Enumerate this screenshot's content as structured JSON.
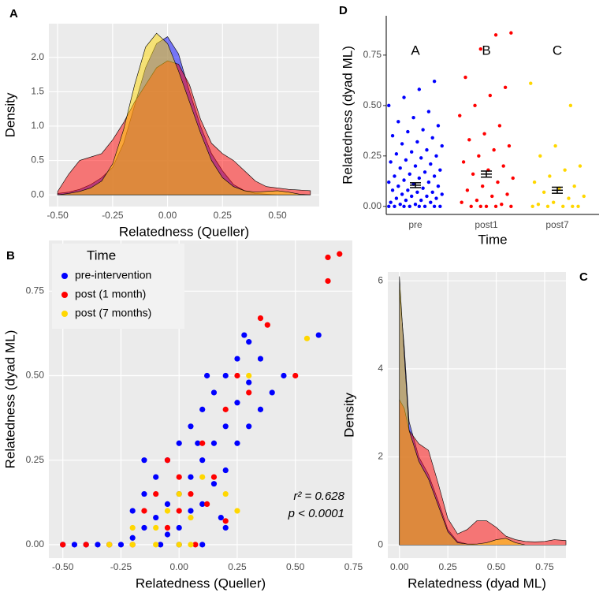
{
  "chart_data": [
    {
      "type": "density",
      "panel": "A",
      "xlabel": "Relatedness (Queller)",
      "ylabel": "Density",
      "xlim": [
        -0.54,
        0.69
      ],
      "ylim": [
        -0.17,
        2.49
      ],
      "grid": true,
      "xticks": [
        {
          "value": -0.5,
          "label": "-0.50"
        },
        -0.25,
        {
          "value": 0,
          "label": "0.00"
        },
        0.25,
        {
          "value": 0.5,
          "label": "0.50"
        }
      ],
      "yticks": [
        {
          "value": 0,
          "label": "0.0"
        },
        0.5,
        {
          "value": 1,
          "label": "1.0"
        },
        1.5,
        {
          "value": 2,
          "label": "2.0"
        }
      ],
      "x": [
        -0.5,
        -0.45,
        -0.4,
        -0.35,
        -0.3,
        -0.25,
        -0.2,
        -0.15,
        -0.1,
        -0.05,
        0,
        0.05,
        0.1,
        0.15,
        0.2,
        0.25,
        0.3,
        0.35,
        0.4,
        0.45,
        0.5,
        0.55,
        0.6,
        0.65
      ],
      "series": [
        {
          "color": "#0000ff",
          "values": [
            0.02,
            0.04,
            0.08,
            0.15,
            0.25,
            0.4,
            0.75,
            1.3,
            1.85,
            2.2,
            2.3,
            2.05,
            1.5,
            1.0,
            0.6,
            0.35,
            0.15,
            0.06,
            0.02,
            0.01,
            0,
            0,
            0,
            0
          ]
        },
        {
          "color": "#ff0000",
          "values": [
            0.05,
            0.3,
            0.5,
            0.55,
            0.6,
            0.8,
            1.05,
            1.35,
            1.6,
            1.85,
            1.95,
            1.9,
            1.6,
            1.1,
            0.75,
            0.6,
            0.5,
            0.35,
            0.2,
            0.12,
            0.1,
            0.08,
            0.07,
            0.06
          ]
        },
        {
          "color": "#ffd700",
          "values": [
            0,
            0.02,
            0.05,
            0.1,
            0.2,
            0.45,
            0.95,
            1.6,
            2.15,
            2.35,
            2.2,
            1.8,
            1.35,
            0.9,
            0.5,
            0.25,
            0.12,
            0.06,
            0.04,
            0.05,
            0.06,
            0.04,
            0.01,
            0
          ]
        }
      ]
    },
    {
      "type": "scatter",
      "panel": "B",
      "xlabel": "Relatedness (Queller)",
      "ylabel": "Relatedness (dyad ML)",
      "xlim": [
        -0.56,
        0.745
      ],
      "ylim": [
        -0.04,
        0.9
      ],
      "grid": true,
      "legend_title": "Time",
      "legend": "top-left",
      "annotations": [
        "r² = 0.628",
        "p < 0.0001"
      ],
      "xticks": [
        {
          "value": -0.5,
          "label": "-0.50"
        },
        -0.25,
        {
          "value": 0,
          "label": "0.00"
        },
        0.25,
        {
          "value": 0.5,
          "label": "0.50"
        },
        0.75
      ],
      "yticks": [
        {
          "value": 0,
          "label": "0.00"
        },
        0.25,
        {
          "value": 0.5,
          "label": "0.50"
        },
        0.75
      ],
      "series": [
        {
          "name": "pre-intervention",
          "color": "#0000ff",
          "x": [
            -0.5,
            -0.45,
            -0.4,
            -0.35,
            -0.3,
            -0.25,
            -0.2,
            -0.15,
            -0.2,
            -0.15,
            -0.1,
            -0.1,
            -0.05,
            -0.05,
            -0.05,
            0,
            0,
            0,
            0.05,
            0.05,
            0.05,
            0.1,
            0.1,
            0.1,
            0.15,
            0.15,
            0.15,
            0.2,
            0.2,
            0.2,
            0.25,
            0.25,
            0.25,
            0.3,
            0.3,
            0.35,
            0.35,
            0.4,
            0.45,
            0.6,
            0,
            0.1,
            0.2,
            -0.15,
            0.3,
            0.28,
            0.12,
            0.18,
            -0.08,
            0.08
          ],
          "values": [
            0,
            0,
            0,
            0,
            0,
            0,
            0.02,
            0.05,
            0.1,
            0.15,
            0.08,
            0.2,
            0.03,
            0.12,
            0.25,
            0.05,
            0.15,
            0.3,
            0.1,
            0.2,
            0.35,
            0.12,
            0.25,
            0.4,
            0.18,
            0.3,
            0.45,
            0.22,
            0.35,
            0.5,
            0.3,
            0.42,
            0.55,
            0.35,
            0.48,
            0.4,
            0.55,
            0.45,
            0.5,
            0.62,
            0,
            0,
            0.05,
            0.25,
            0.6,
            0.62,
            0.5,
            0.08,
            0,
            0.3
          ]
        },
        {
          "name": "post (1 month)",
          "color": "#ff0000",
          "x": [
            -0.5,
            -0.4,
            -0.3,
            -0.2,
            -0.15,
            -0.1,
            -0.05,
            0,
            0,
            0.05,
            0.1,
            0.15,
            0.2,
            0.25,
            0.3,
            0.35,
            0.38,
            0.5,
            0.64,
            0.64,
            0.69,
            0.2,
            -0.05,
            0.12,
            0.07
          ],
          "values": [
            0,
            0,
            0,
            0,
            0.1,
            0.15,
            0.05,
            0.1,
            0.2,
            0.15,
            0.3,
            0.2,
            0.4,
            0.5,
            0.45,
            0.67,
            0.65,
            0.5,
            0.78,
            0.85,
            0.86,
            0.07,
            0.25,
            0.12,
            0
          ]
        },
        {
          "name": "post (7 months)",
          "color": "#ffd700",
          "x": [
            -0.3,
            -0.2,
            -0.1,
            0,
            0.05,
            -0.1,
            -0.05,
            0,
            0.05,
            0.1,
            0.2,
            0.25,
            0.3,
            0.55,
            -0.2
          ],
          "values": [
            0,
            0,
            0,
            0,
            0,
            0.05,
            0.1,
            0.15,
            0.08,
            0.2,
            0.15,
            0.1,
            0.5,
            0.61,
            0.05
          ]
        }
      ]
    },
    {
      "type": "density",
      "panel": "C",
      "xlabel": "Relatedness (dyad ML)",
      "ylabel": "Density",
      "xlim": [
        -0.06,
        0.86
      ],
      "ylim": [
        -0.3,
        6.2
      ],
      "grid": true,
      "xticks": [
        {
          "value": 0,
          "label": "0.00"
        },
        0.25,
        {
          "value": 0.5,
          "label": "0.50"
        },
        0.75
      ],
      "yticks": [
        0,
        2,
        4,
        6
      ],
      "x": [
        0,
        0.025,
        0.05,
        0.1,
        0.15,
        0.2,
        0.25,
        0.3,
        0.35,
        0.4,
        0.45,
        0.5,
        0.55,
        0.6,
        0.65,
        0.7,
        0.75,
        0.8,
        0.86
      ],
      "series": [
        {
          "color": "#0000ff",
          "values": [
            5.8,
            4.5,
            2.8,
            2.0,
            1.6,
            1.0,
            0.35,
            0.08,
            0.02,
            0,
            0,
            0,
            0,
            0,
            0,
            0,
            0,
            0,
            0
          ]
        },
        {
          "color": "#ff0000",
          "values": [
            3.3,
            3.1,
            2.6,
            2.3,
            2.15,
            1.4,
            0.6,
            0.25,
            0.35,
            0.55,
            0.55,
            0.4,
            0.2,
            0.12,
            0.08,
            0.07,
            0.08,
            0.12,
            0.1
          ]
        },
        {
          "color": "#ffd700",
          "values": [
            6.1,
            4.3,
            2.6,
            1.9,
            1.5,
            0.9,
            0.3,
            0.05,
            0.02,
            0.02,
            0.05,
            0.12,
            0.15,
            0.05,
            0,
            0,
            0,
            0,
            0
          ]
        }
      ]
    },
    {
      "type": "strip",
      "panel": "D",
      "xlabel": "Time",
      "ylabel": "Relatedness (dyad ML)",
      "ylim": [
        -0.04,
        0.945
      ],
      "grid": false,
      "yticks": [
        {
          "value": 0,
          "label": "0.00"
        },
        0.25,
        {
          "value": 0.5,
          "label": "0.50"
        },
        0.75
      ],
      "categories": [
        "pre",
        "post1",
        "post7"
      ],
      "group_labels": [
        "A",
        "B",
        "C"
      ],
      "colors": [
        "#0000ff",
        "#ff0000",
        "#ffd700"
      ],
      "means": [
        0.105,
        0.16,
        0.08
      ],
      "errors": [
        0.012,
        0.015,
        0.015
      ],
      "points": [
        [
          0,
          0,
          0,
          0,
          0,
          0,
          0,
          0,
          0.01,
          0.01,
          0.02,
          0.02,
          0.03,
          0.03,
          0.04,
          0.04,
          0.05,
          0.05,
          0.06,
          0.06,
          0.07,
          0.07,
          0.08,
          0.08,
          0.09,
          0.1,
          0.1,
          0.11,
          0.12,
          0.12,
          0.13,
          0.14,
          0.15,
          0.15,
          0.16,
          0.17,
          0.18,
          0.19,
          0.2,
          0.21,
          0.22,
          0.23,
          0.24,
          0.25,
          0.26,
          0.27,
          0.28,
          0.3,
          0.31,
          0.32,
          0.34,
          0.35,
          0.37,
          0.38,
          0.4,
          0.42,
          0.44,
          0.47,
          0.5,
          0.54,
          0.58,
          0.62
        ],
        [
          0,
          0,
          0,
          0,
          0,
          0.01,
          0.02,
          0.03,
          0.05,
          0.06,
          0.08,
          0.1,
          0.12,
          0.14,
          0.16,
          0.18,
          0.2,
          0.22,
          0.25,
          0.28,
          0.3,
          0.33,
          0.36,
          0.4,
          0.45,
          0.5,
          0.55,
          0.59,
          0.64,
          0.78,
          0.85,
          0.86
        ],
        [
          0,
          0,
          0,
          0,
          0,
          0.01,
          0.02,
          0.04,
          0.05,
          0.07,
          0.09,
          0.1,
          0.12,
          0.15,
          0.18,
          0.2,
          0.25,
          0.3,
          0.5,
          0.61
        ]
      ]
    }
  ]
}
